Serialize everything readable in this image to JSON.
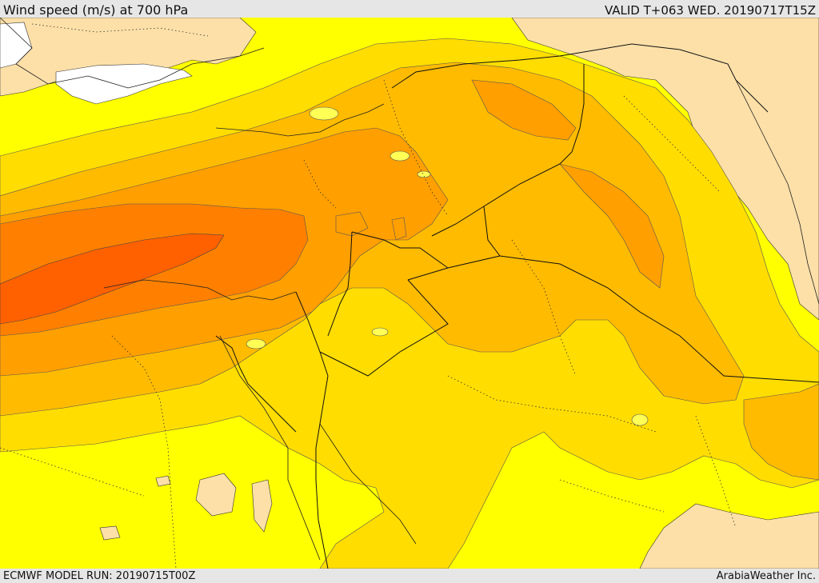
{
  "header": {
    "title": "Wind speed (m/s) at 700 hPa",
    "valid": "VALID T+063 WED. 20190717T15Z"
  },
  "footer": {
    "model_run": "ECMWF MODEL RUN: 20190715T00Z",
    "credit": "ArabiaWeather Inc."
  },
  "colors": {
    "land_light": "#fde0a8",
    "sea_white": "#ffffff",
    "level_yellow": "#ffff00",
    "level_gold": "#ffdd00",
    "level_amber": "#ffbb00",
    "level_orange_light": "#ff9f00",
    "level_orange": "#ff8000",
    "level_orange_dark": "#ff6000"
  },
  "map": {
    "variable": "wind speed",
    "units": "m/s",
    "pressure_level": "700 hPa",
    "region": "Eastern Mediterranean / Levant / Arabia"
  }
}
